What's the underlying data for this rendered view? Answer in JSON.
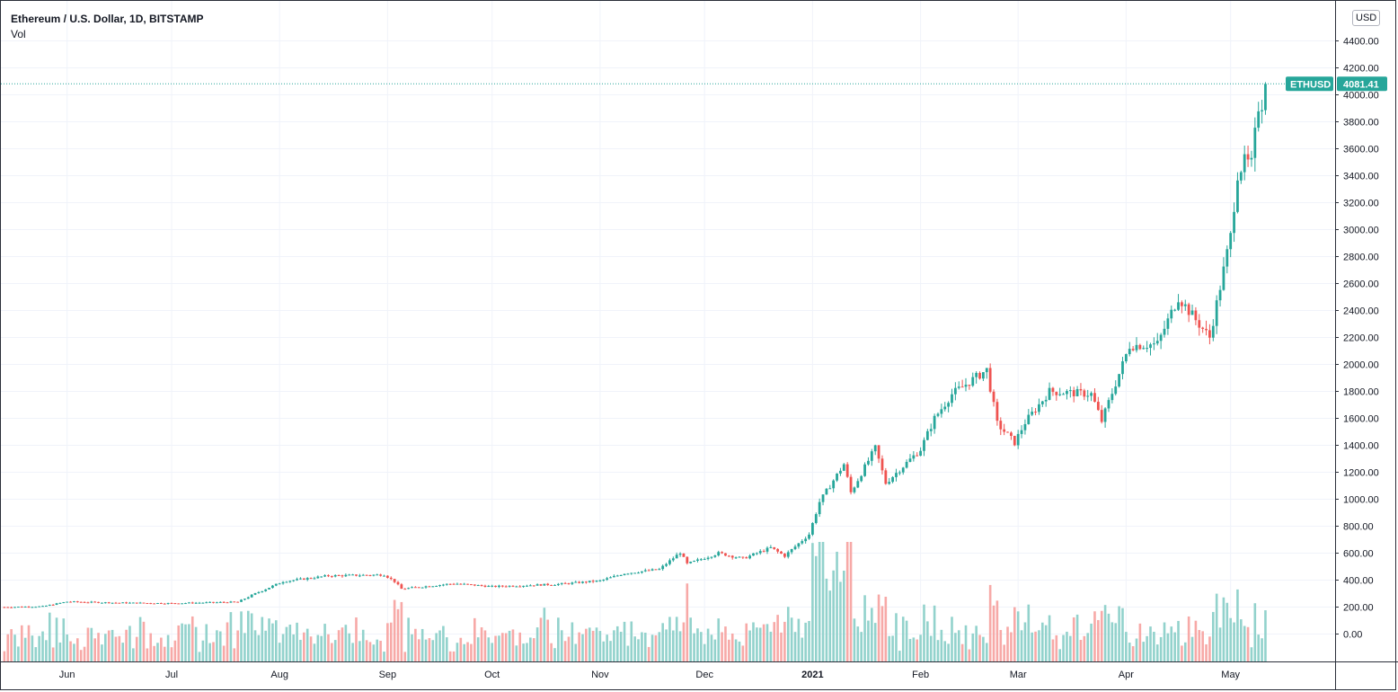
{
  "chart_data": {
    "type": "candlestick",
    "title": "Ethereum / U.S. Dollar, 1D, BITSTAMP",
    "volume_label": "Vol",
    "currency": "USD",
    "last_price": {
      "symbol": "ETHUSD",
      "value": "4081.41"
    },
    "y_axis": {
      "ylim": [
        -200,
        4700
      ],
      "ticks": [
        "0.00",
        "200.00",
        "400.00",
        "600.00",
        "800.00",
        "1000.00",
        "1200.00",
        "1400.00",
        "1600.00",
        "1800.00",
        "2000.00",
        "2200.00",
        "2400.00",
        "2600.00",
        "2800.00",
        "3000.00",
        "3200.00",
        "3400.00",
        "3600.00",
        "3800.00",
        "4000.00",
        "4200.00",
        "4400.00"
      ]
    },
    "x_axis": {
      "range": [
        "2020-05-13",
        "2021-05-31"
      ],
      "ticks": [
        {
          "date": "2020-06-01",
          "label": "Jun",
          "bold": false
        },
        {
          "date": "2020-07-01",
          "label": "Jul",
          "bold": false
        },
        {
          "date": "2020-08-01",
          "label": "Aug",
          "bold": false
        },
        {
          "date": "2020-09-01",
          "label": "Sep",
          "bold": false
        },
        {
          "date": "2020-10-01",
          "label": "Oct",
          "bold": false
        },
        {
          "date": "2020-11-01",
          "label": "Nov",
          "bold": false
        },
        {
          "date": "2020-12-01",
          "label": "Dec",
          "bold": false
        },
        {
          "date": "2021-01-01",
          "label": "2021",
          "bold": true
        },
        {
          "date": "2021-02-01",
          "label": "Feb",
          "bold": false
        },
        {
          "date": "2021-03-01",
          "label": "Mar",
          "bold": false
        },
        {
          "date": "2021-04-01",
          "label": "Apr",
          "bold": false
        },
        {
          "date": "2021-05-01",
          "label": "May",
          "bold": false
        }
      ]
    },
    "start_date": "2020-05-14",
    "close_anchors": [
      [
        "2020-05-14",
        200
      ],
      [
        "2020-05-25",
        205
      ],
      [
        "2020-06-01",
        240
      ],
      [
        "2020-06-15",
        232
      ],
      [
        "2020-07-01",
        228
      ],
      [
        "2020-07-20",
        238
      ],
      [
        "2020-07-25",
        300
      ],
      [
        "2020-08-02",
        390
      ],
      [
        "2020-08-15",
        432
      ],
      [
        "2020-08-31",
        440
      ],
      [
        "2020-09-03",
        390
      ],
      [
        "2020-09-05",
        335
      ],
      [
        "2020-09-20",
        375
      ],
      [
        "2020-10-01",
        352
      ],
      [
        "2020-10-20",
        370
      ],
      [
        "2020-11-01",
        395
      ],
      [
        "2020-11-08",
        450
      ],
      [
        "2020-11-18",
        480
      ],
      [
        "2020-11-24",
        605
      ],
      [
        "2020-11-26",
        520
      ],
      [
        "2020-12-05",
        600
      ],
      [
        "2020-12-12",
        560
      ],
      [
        "2020-12-20",
        640
      ],
      [
        "2020-12-24",
        580
      ],
      [
        "2020-12-31",
        740
      ],
      [
        "2021-01-03",
        980
      ],
      [
        "2021-01-10",
        1260
      ],
      [
        "2021-01-12",
        1050
      ],
      [
        "2021-01-19",
        1380
      ],
      [
        "2021-01-22",
        1120
      ],
      [
        "2021-02-01",
        1370
      ],
      [
        "2021-02-05",
        1600
      ],
      [
        "2021-02-10",
        1780
      ],
      [
        "2021-02-20",
        1960
      ],
      [
        "2021-02-23",
        1560
      ],
      [
        "2021-02-28",
        1420
      ],
      [
        "2021-03-03",
        1570
      ],
      [
        "2021-03-10",
        1800
      ],
      [
        "2021-03-22",
        1780
      ],
      [
        "2021-03-25",
        1580
      ],
      [
        "2021-04-02",
        2140
      ],
      [
        "2021-04-10",
        2150
      ],
      [
        "2021-04-16",
        2500
      ],
      [
        "2021-04-21",
        2330
      ],
      [
        "2021-04-25",
        2200
      ],
      [
        "2021-05-01",
        2950
      ],
      [
        "2021-05-03",
        3420
      ],
      [
        "2021-05-05",
        3500
      ],
      [
        "2021-05-07",
        3480
      ],
      [
        "2021-05-09",
        3920
      ],
      [
        "2021-05-10",
        3940
      ],
      [
        "2021-05-11",
        4081.41
      ]
    ],
    "volume_scale": [
      0,
      200,
      400,
      600
    ]
  }
}
